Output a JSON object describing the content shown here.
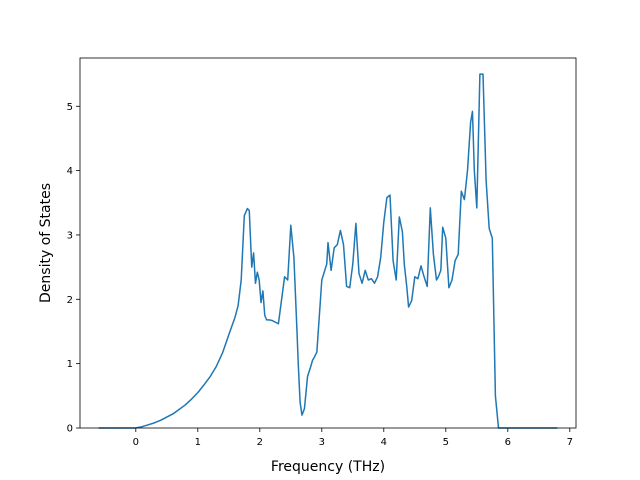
{
  "chart_data": {
    "type": "line",
    "title": "",
    "xlabel": "Frequency (THz)",
    "ylabel": "Density of States",
    "xlim": [
      -0.9,
      7.1
    ],
    "ylim": [
      0,
      5.75
    ],
    "xticks": [
      0,
      1,
      2,
      3,
      4,
      5,
      6,
      7
    ],
    "yticks": [
      0,
      1,
      2,
      3,
      4,
      5
    ],
    "grid": false,
    "legend": "none",
    "line_color": "#1f77b4",
    "series": [
      {
        "x": [
          -0.6,
          -0.4,
          -0.2,
          0.0,
          0.1,
          0.2,
          0.3,
          0.4,
          0.5,
          0.6,
          0.7,
          0.8,
          0.9,
          1.0,
          1.1,
          1.2,
          1.3,
          1.4,
          1.5,
          1.6,
          1.65,
          1.7,
          1.75,
          1.8,
          1.83,
          1.87,
          1.9,
          1.93,
          1.96,
          1.99,
          2.02,
          2.05,
          2.08,
          2.11,
          2.15,
          2.2,
          2.3,
          2.4,
          2.45,
          2.5,
          2.55,
          2.6,
          2.62,
          2.65,
          2.68,
          2.72,
          2.77,
          2.82,
          2.85,
          2.88,
          2.92,
          3.0,
          3.08,
          3.1,
          3.15,
          3.2,
          3.25,
          3.3,
          3.35,
          3.4,
          3.45,
          3.5,
          3.55,
          3.6,
          3.65,
          3.7,
          3.75,
          3.8,
          3.85,
          3.9,
          3.95,
          4.0,
          4.05,
          4.1,
          4.15,
          4.2,
          4.25,
          4.3,
          4.33,
          4.37,
          4.4,
          4.45,
          4.5,
          4.55,
          4.6,
          4.65,
          4.7,
          4.75,
          4.8,
          4.85,
          4.88,
          4.92,
          4.95,
          5.0,
          5.05,
          5.1,
          5.15,
          5.2,
          5.25,
          5.3,
          5.35,
          5.4,
          5.43,
          5.46,
          5.5,
          5.55,
          5.6,
          5.65,
          5.7,
          5.75,
          5.8,
          5.85,
          5.88,
          5.92,
          5.95,
          6.0,
          6.05,
          6.1,
          6.15,
          6.2,
          6.5,
          6.8
        ],
        "y": [
          0,
          0,
          0,
          0,
          0.02,
          0.05,
          0.08,
          0.12,
          0.17,
          0.22,
          0.29,
          0.36,
          0.45,
          0.55,
          0.67,
          0.8,
          0.96,
          1.17,
          1.45,
          1.72,
          1.9,
          2.3,
          3.3,
          3.41,
          3.38,
          2.5,
          2.72,
          2.25,
          2.42,
          2.3,
          1.95,
          2.13,
          1.75,
          1.68,
          1.68,
          1.67,
          1.62,
          2.35,
          2.3,
          3.15,
          2.65,
          1.5,
          1.0,
          0.4,
          0.2,
          0.3,
          0.8,
          0.95,
          1.05,
          1.1,
          1.18,
          2.3,
          2.55,
          2.88,
          2.45,
          2.8,
          2.85,
          3.07,
          2.85,
          2.2,
          2.18,
          2.55,
          3.18,
          2.4,
          2.25,
          2.45,
          2.3,
          2.32,
          2.25,
          2.35,
          2.65,
          3.2,
          3.58,
          3.62,
          2.6,
          2.3,
          3.28,
          3.05,
          2.55,
          2.2,
          1.88,
          1.98,
          2.35,
          2.32,
          2.52,
          2.35,
          2.2,
          3.42,
          2.7,
          2.3,
          2.35,
          2.45,
          3.12,
          2.95,
          2.18,
          2.3,
          2.6,
          2.7,
          3.68,
          3.55,
          4.0,
          4.75,
          4.92,
          4.0,
          3.42,
          5.5,
          5.5,
          3.85,
          3.1,
          2.95,
          0.5,
          0,
          0,
          0,
          0,
          0,
          0,
          0,
          0,
          0,
          0,
          0
        ]
      }
    ]
  }
}
